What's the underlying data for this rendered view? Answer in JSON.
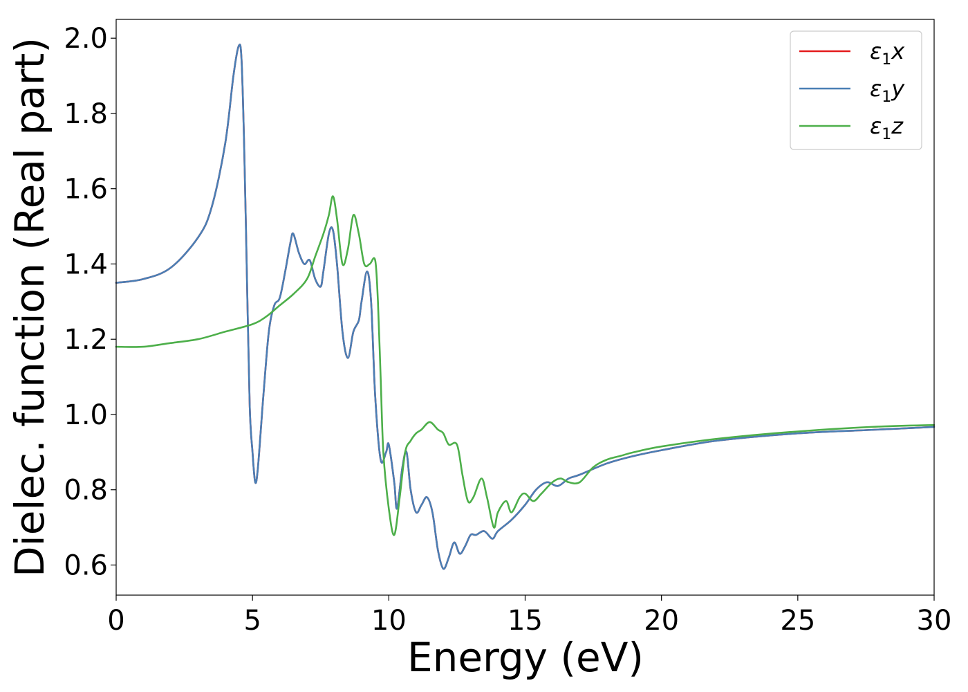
{
  "chart_data": {
    "type": "line",
    "xlabel": "Energy (eV)",
    "ylabel": "Dielec. function (Real part)",
    "xlim": [
      0,
      30
    ],
    "ylim": [
      0.52,
      2.05
    ],
    "xticks": [
      "0",
      "5",
      "10",
      "15",
      "20",
      "25",
      "30"
    ],
    "yticks": [
      "0.6",
      "0.8",
      "1.0",
      "1.2",
      "1.4",
      "1.6",
      "1.8",
      "2.0"
    ],
    "grid": false,
    "legend_position": "top-right",
    "series": [
      {
        "name": "ε1x",
        "legend_symbol": "ε",
        "legend_sub": "1",
        "legend_var": "x",
        "color": "#e41a1c",
        "x": [
          0,
          1,
          2,
          3,
          3.5,
          4,
          4.3,
          4.5,
          4.6,
          4.7,
          4.8,
          4.9,
          5.0,
          5.1,
          5.2,
          5.4,
          5.6,
          5.8,
          6.0,
          6.2,
          6.4,
          6.5,
          6.7,
          6.9,
          7.1,
          7.3,
          7.5,
          7.6,
          7.8,
          7.95,
          8.1,
          8.3,
          8.5,
          8.7,
          8.9,
          9.0,
          9.2,
          9.35,
          9.5,
          9.7,
          9.9,
          10.0,
          10.2,
          10.3,
          10.5,
          10.65,
          10.8,
          11.0,
          11.2,
          11.4,
          11.6,
          11.8,
          12.0,
          12.2,
          12.4,
          12.6,
          12.8,
          13.0,
          13.2,
          13.5,
          13.8,
          14.0,
          14.5,
          15.0,
          15.4,
          15.8,
          16.2,
          16.6,
          17.0,
          18.0,
          19.0,
          20.0,
          22.0,
          25.0,
          28.0,
          30.0
        ],
        "values": [
          1.35,
          1.36,
          1.39,
          1.47,
          1.55,
          1.72,
          1.9,
          1.98,
          1.94,
          1.7,
          1.35,
          1.02,
          0.9,
          0.82,
          0.86,
          1.05,
          1.22,
          1.29,
          1.31,
          1.38,
          1.46,
          1.48,
          1.43,
          1.4,
          1.41,
          1.36,
          1.34,
          1.38,
          1.48,
          1.49,
          1.4,
          1.22,
          1.15,
          1.22,
          1.25,
          1.3,
          1.38,
          1.3,
          1.05,
          0.88,
          0.9,
          0.92,
          0.82,
          0.75,
          0.86,
          0.9,
          0.8,
          0.74,
          0.76,
          0.78,
          0.74,
          0.64,
          0.59,
          0.62,
          0.66,
          0.63,
          0.65,
          0.68,
          0.68,
          0.69,
          0.67,
          0.69,
          0.72,
          0.76,
          0.8,
          0.82,
          0.81,
          0.83,
          0.84,
          0.87,
          0.89,
          0.905,
          0.93,
          0.95,
          0.96,
          0.967
        ]
      },
      {
        "name": "ε1y",
        "legend_symbol": "ε",
        "legend_sub": "1",
        "legend_var": "y",
        "color": "#4a7fb5",
        "x": [
          0,
          1,
          2,
          3,
          3.5,
          4,
          4.3,
          4.5,
          4.6,
          4.7,
          4.8,
          4.9,
          5.0,
          5.1,
          5.2,
          5.4,
          5.6,
          5.8,
          6.0,
          6.2,
          6.4,
          6.5,
          6.7,
          6.9,
          7.1,
          7.3,
          7.5,
          7.6,
          7.8,
          7.95,
          8.1,
          8.3,
          8.5,
          8.7,
          8.9,
          9.0,
          9.2,
          9.35,
          9.5,
          9.7,
          9.9,
          10.0,
          10.2,
          10.3,
          10.5,
          10.65,
          10.8,
          11.0,
          11.2,
          11.4,
          11.6,
          11.8,
          12.0,
          12.2,
          12.4,
          12.6,
          12.8,
          13.0,
          13.2,
          13.5,
          13.8,
          14.0,
          14.5,
          15.0,
          15.4,
          15.8,
          16.2,
          16.6,
          17.0,
          18.0,
          19.0,
          20.0,
          22.0,
          25.0,
          28.0,
          30.0
        ],
        "values": [
          1.35,
          1.36,
          1.39,
          1.47,
          1.55,
          1.72,
          1.9,
          1.98,
          1.94,
          1.7,
          1.35,
          1.02,
          0.9,
          0.82,
          0.86,
          1.05,
          1.22,
          1.29,
          1.31,
          1.38,
          1.46,
          1.48,
          1.43,
          1.4,
          1.41,
          1.36,
          1.34,
          1.38,
          1.48,
          1.49,
          1.4,
          1.22,
          1.15,
          1.22,
          1.25,
          1.3,
          1.38,
          1.3,
          1.05,
          0.88,
          0.9,
          0.92,
          0.82,
          0.75,
          0.86,
          0.9,
          0.8,
          0.74,
          0.76,
          0.78,
          0.74,
          0.64,
          0.59,
          0.62,
          0.66,
          0.63,
          0.65,
          0.68,
          0.68,
          0.69,
          0.67,
          0.69,
          0.72,
          0.76,
          0.8,
          0.82,
          0.81,
          0.83,
          0.84,
          0.87,
          0.89,
          0.905,
          0.93,
          0.95,
          0.96,
          0.967
        ]
      },
      {
        "name": "ε1z",
        "legend_symbol": "ε",
        "legend_sub": "1",
        "legend_var": "z",
        "color": "#4daf4a",
        "x": [
          0,
          1,
          2,
          3,
          4,
          5,
          5.5,
          6,
          6.5,
          7,
          7.3,
          7.6,
          7.8,
          7.95,
          8.1,
          8.3,
          8.5,
          8.7,
          8.9,
          9.1,
          9.3,
          9.5,
          9.6,
          9.7,
          9.8,
          10.0,
          10.2,
          10.4,
          10.6,
          10.8,
          11.0,
          11.2,
          11.5,
          11.8,
          12.0,
          12.2,
          12.5,
          12.7,
          12.9,
          13.1,
          13.4,
          13.6,
          13.85,
          14.0,
          14.3,
          14.5,
          14.8,
          15.0,
          15.3,
          15.6,
          16.0,
          16.3,
          16.6,
          17.0,
          17.5,
          18.0,
          18.5,
          19.0,
          20.0,
          22.0,
          25.0,
          28.0,
          30.0
        ],
        "values": [
          1.18,
          1.18,
          1.19,
          1.2,
          1.22,
          1.24,
          1.26,
          1.29,
          1.32,
          1.36,
          1.42,
          1.48,
          1.53,
          1.58,
          1.52,
          1.4,
          1.44,
          1.53,
          1.48,
          1.4,
          1.4,
          1.41,
          1.3,
          1.1,
          0.9,
          0.75,
          0.68,
          0.78,
          0.9,
          0.93,
          0.95,
          0.96,
          0.98,
          0.96,
          0.95,
          0.92,
          0.92,
          0.84,
          0.77,
          0.78,
          0.83,
          0.78,
          0.7,
          0.74,
          0.77,
          0.74,
          0.78,
          0.79,
          0.77,
          0.79,
          0.82,
          0.83,
          0.82,
          0.82,
          0.86,
          0.88,
          0.89,
          0.9,
          0.915,
          0.935,
          0.955,
          0.968,
          0.972
        ]
      }
    ]
  }
}
